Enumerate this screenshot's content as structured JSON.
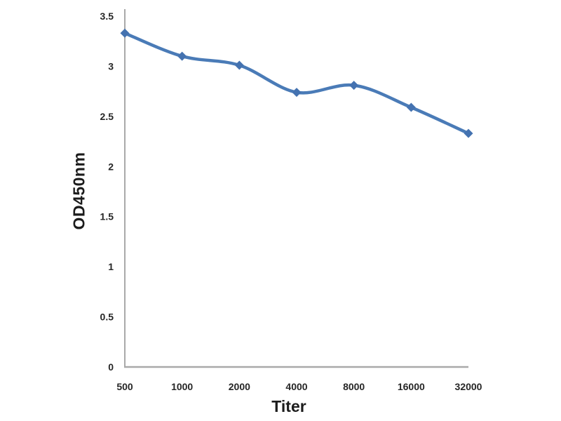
{
  "chart_data": {
    "type": "line",
    "title": "",
    "xlabel": "Titer",
    "ylabel": "OD450nm",
    "categories": [
      "500",
      "1000",
      "2000",
      "4000",
      "8000",
      "16000",
      "32000"
    ],
    "series": [
      {
        "name": "OD450nm",
        "values": [
          3.33,
          3.1,
          3.01,
          2.74,
          2.81,
          2.59,
          2.33
        ]
      }
    ],
    "ylim": [
      0,
      3.5
    ],
    "ytick_labels": [
      "0",
      "0.5",
      "1",
      "1.5",
      "2",
      "2.5",
      "3",
      "3.5"
    ],
    "grid": false,
    "legend_position": "none",
    "line_style": "smooth",
    "marker": "diamond",
    "colors": {
      "line": "#4A7BB7",
      "marker": "#4472B0",
      "axis": "#A9A9A9",
      "text": "#262626",
      "background": "#FFFFFF"
    }
  }
}
